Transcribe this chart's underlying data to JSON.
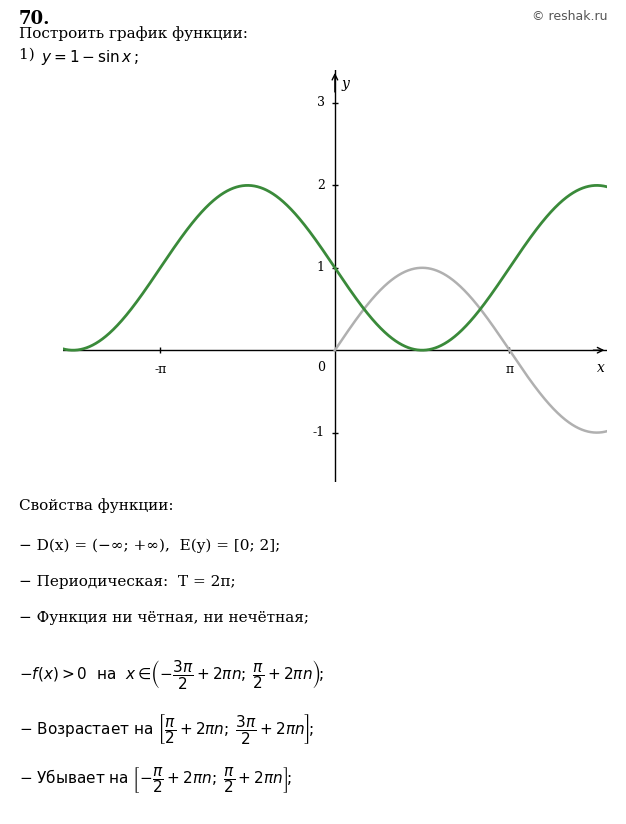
{
  "title_number": "70.",
  "title_text": "Построить график функции:",
  "func_label": "1) y = 1 − sin x ;",
  "curve_color_main": "#3a8a3a",
  "curve_color_ref": "#b0b0b0",
  "background_color": "#ffffff",
  "grid_color": "#cccccc",
  "xlim": [
    -4.9,
    4.9
  ],
  "ylim": [
    -1.6,
    3.4
  ],
  "xtick_labels": [
    [
      "-π",
      -3.14159265
    ],
    [
      "π",
      3.14159265
    ]
  ],
  "ytick_values": [
    -1,
    1,
    2,
    3
  ],
  "x_label": "x",
  "y_label": "y",
  "reshak_text": "© reshak.ru",
  "props_title": "Свойства функции:",
  "prop1": "− D(x) = (−∞; +∞),  E(y) = [0; 2];",
  "prop2": "− Периодическая:  T = 2π;",
  "prop3": "− Функция ни чётная, ни нечётная;",
  "fig_width": 6.26,
  "fig_height": 8.24
}
